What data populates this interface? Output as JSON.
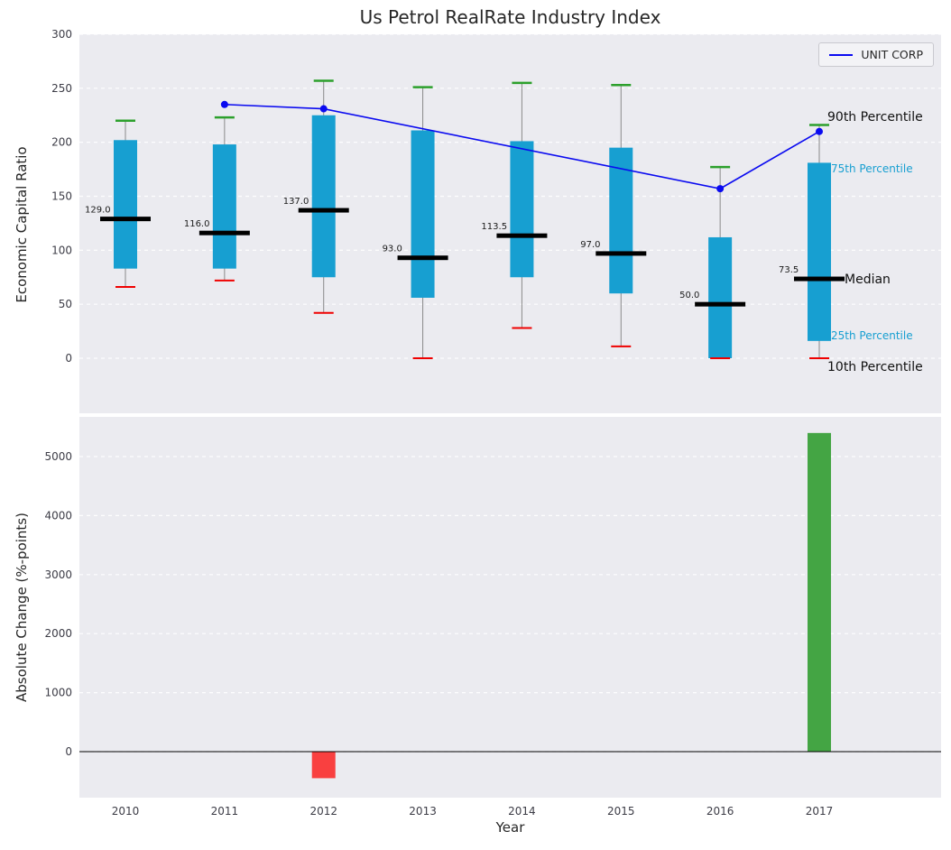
{
  "chart_data": [
    {
      "type": "box",
      "panel": "top",
      "title": "Us Petrol RealRate Industry Index",
      "ylabel": "Economic Capital Ratio",
      "categories": [
        "2010",
        "2011",
        "2012",
        "2013",
        "2014",
        "2015",
        "2016",
        "2017"
      ],
      "yticks": [
        0,
        50,
        100,
        150,
        200,
        250,
        300
      ],
      "ylim": [
        -51,
        300
      ],
      "grid": true,
      "boxes": [
        {
          "year": "2010",
          "p10": 66,
          "p25": 83,
          "median": 129.0,
          "p75": 202,
          "p90": 220
        },
        {
          "year": "2011",
          "p10": 72,
          "p25": 83,
          "median": 116.0,
          "p75": 198,
          "p90": 223
        },
        {
          "year": "2012",
          "p10": 42,
          "p25": 75,
          "median": 137.0,
          "p75": 225,
          "p90": 257
        },
        {
          "year": "2013",
          "p10": 0,
          "p25": 56,
          "median": 93.0,
          "p75": 211,
          "p90": 251
        },
        {
          "year": "2014",
          "p10": 28,
          "p25": 75,
          "median": 113.5,
          "p75": 201,
          "p90": 255
        },
        {
          "year": "2015",
          "p10": 11,
          "p25": 60,
          "median": 97.0,
          "p75": 195,
          "p90": 253
        },
        {
          "year": "2016",
          "p10": 0,
          "p25": 0,
          "median": 50.0,
          "p75": 112,
          "p90": 177
        },
        {
          "year": "2017",
          "p10": 0,
          "p25": 16,
          "median": 73.5,
          "p75": 181,
          "p90": 216
        }
      ],
      "median_labels": [
        "129.0",
        "116.0",
        "137.0",
        "93.0",
        "113.5",
        "97.0",
        "50.0",
        "73.5"
      ],
      "line_series": {
        "name": "UNIT CORP",
        "color": "#0a0af0",
        "points": [
          {
            "year": "2011",
            "value": 235
          },
          {
            "year": "2012",
            "value": 231
          },
          {
            "year": "2016",
            "value": 157
          },
          {
            "year": "2017",
            "value": 210
          }
        ]
      },
      "legend": {
        "position": "upper right",
        "entries": [
          {
            "label": "UNIT CORP",
            "color": "#0a0af0"
          }
        ]
      },
      "annotations": [
        {
          "label": "90th Percentile",
          "color": "#111111"
        },
        {
          "label": "75th Percentile",
          "color": "#179fd1"
        },
        {
          "label": "Median",
          "color": "#111111"
        },
        {
          "label": "25th Percentile",
          "color": "#179fd1"
        },
        {
          "label": "10th Percentile",
          "color": "#111111"
        }
      ],
      "colors": {
        "box_fill": "#179fd1",
        "p90_cap": "#2ca02c",
        "p10_cap": "#ef0000",
        "median": "#000000",
        "whisker": "#8a8a8a",
        "panel_bg": "#ebebf0",
        "gridline": "#ffffff"
      }
    },
    {
      "type": "bar",
      "panel": "bottom",
      "ylabel": "Absolute Change (%-points)",
      "xlabel": "Year",
      "categories": [
        "2010",
        "2011",
        "2012",
        "2013",
        "2014",
        "2015",
        "2016",
        "2017"
      ],
      "values": [
        0,
        0,
        -450,
        0,
        0,
        0,
        0,
        5400
      ],
      "bar_colors": [
        null,
        null,
        "#f94040",
        null,
        null,
        null,
        null,
        "#44a544"
      ],
      "yticks": [
        0,
        1000,
        2000,
        3000,
        4000,
        5000
      ],
      "ylim": [
        -780,
        5670
      ],
      "zero_line": true
    }
  ]
}
